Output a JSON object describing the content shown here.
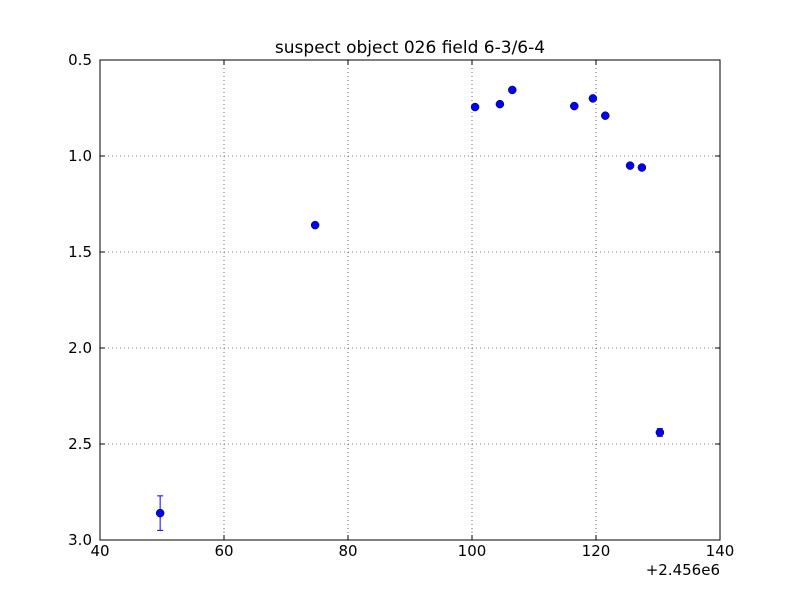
{
  "chart_data": {
    "type": "scatter",
    "title": "suspect object 026 field 6-3/6-4",
    "x_offset_label": "+2.456e6",
    "series": [
      {
        "color": "#0000ff",
        "x": [
          49.7,
          74.7,
          100.5,
          104.5,
          106.5,
          116.5,
          119.5,
          121.5,
          125.5,
          127.4,
          130.3
        ],
        "values": [
          2.86,
          1.36,
          0.745,
          0.73,
          0.656,
          0.74,
          0.7,
          0.79,
          1.05,
          1.06,
          2.44
        ],
        "errors": [
          0.09,
          0.01,
          0.01,
          0.01,
          0.01,
          0.01,
          0.01,
          0.01,
          0.01,
          0.01,
          0.02
        ]
      }
    ],
    "xlim": [
      40,
      140
    ],
    "xticks": [
      40,
      60,
      80,
      100,
      120,
      140
    ],
    "ylim": [
      0.5,
      3
    ],
    "yinvert": true,
    "yticks": [
      0.5,
      {
        "value": 1,
        "label": "1.0"
      },
      1.5,
      {
        "value": 2,
        "label": "2.0"
      },
      2.5,
      {
        "value": 3,
        "label": "3.0"
      }
    ],
    "grid": true
  }
}
